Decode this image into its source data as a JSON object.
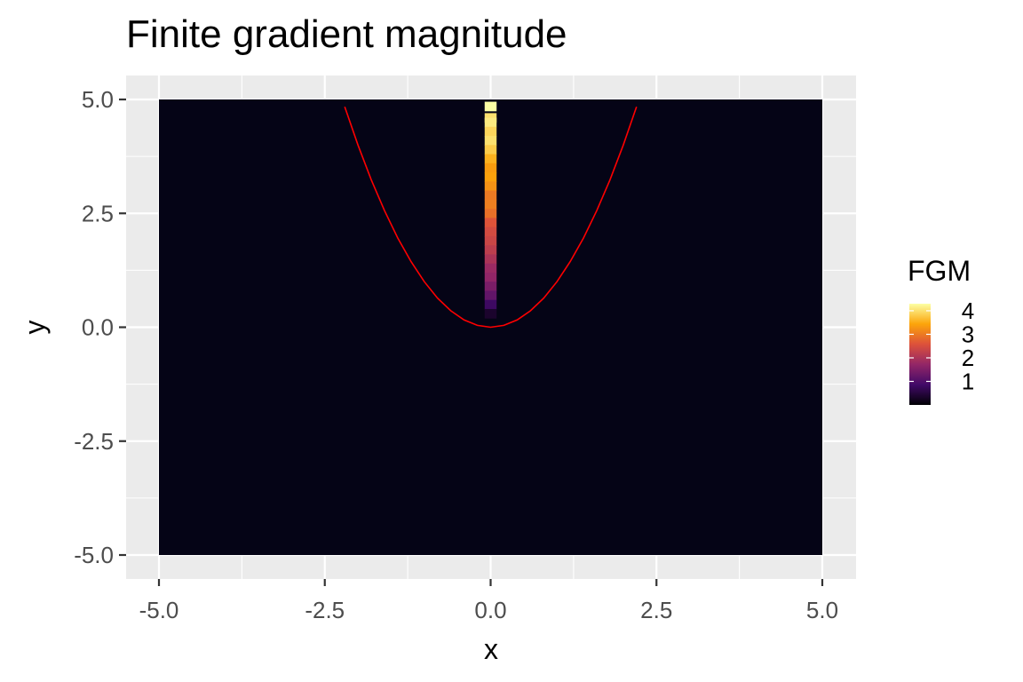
{
  "chart_data": {
    "type": "heatmap",
    "title": "Finite gradient magnitude",
    "xlabel": "x",
    "ylabel": "y",
    "xlim": [
      -5,
      5
    ],
    "ylim": [
      -5,
      5
    ],
    "x_ticks": [
      "-5.0",
      "-2.5",
      "0.0",
      "2.5",
      "5.0"
    ],
    "y_ticks": [
      "5.0",
      "2.5",
      "0.0",
      "-2.5",
      "-5.0"
    ],
    "x_tick_values": [
      -5,
      -2.5,
      0,
      2.5,
      5
    ],
    "y_tick_values": [
      5,
      2.5,
      0,
      -2.5,
      -5
    ],
    "grid": true,
    "background_color": "#050416",
    "panel_color": "#ebebeb",
    "legend": {
      "title": "FGM",
      "labels": [
        "4",
        "3",
        "2",
        "1"
      ],
      "values": [
        4,
        3,
        2,
        1
      ],
      "range": [
        0,
        4.3
      ],
      "placement": "right",
      "colormap": "inferno",
      "colors": [
        "#000004",
        "#420a68",
        "#932667",
        "#dd513a",
        "#fca50a",
        "#fcffa4"
      ]
    },
    "ridge": {
      "x": 0,
      "cells": [
        {
          "y": 4.85,
          "v": 4.3
        },
        {
          "y": 4.6,
          "v": 4.0
        },
        {
          "y": 4.5,
          "v": 4.1
        },
        {
          "y": 4.3,
          "v": 3.9
        },
        {
          "y": 4.1,
          "v": 4.0
        },
        {
          "y": 3.9,
          "v": 3.8
        },
        {
          "y": 3.7,
          "v": 3.55
        },
        {
          "y": 3.5,
          "v": 3.35
        },
        {
          "y": 3.3,
          "v": 3.4
        },
        {
          "y": 3.1,
          "v": 3.25
        },
        {
          "y": 2.9,
          "v": 3.0
        },
        {
          "y": 2.7,
          "v": 3.05
        },
        {
          "y": 2.5,
          "v": 2.9
        },
        {
          "y": 2.3,
          "v": 2.6
        },
        {
          "y": 2.1,
          "v": 2.45
        },
        {
          "y": 1.9,
          "v": 2.35
        },
        {
          "y": 1.7,
          "v": 2.2
        },
        {
          "y": 1.5,
          "v": 2.0
        },
        {
          "y": 1.3,
          "v": 1.8
        },
        {
          "y": 1.1,
          "v": 1.7
        },
        {
          "y": 0.9,
          "v": 1.45
        },
        {
          "y": 0.7,
          "v": 1.2
        },
        {
          "y": 0.5,
          "v": 0.8
        },
        {
          "y": 0.3,
          "v": 0.35
        }
      ]
    },
    "curve": {
      "name": "",
      "color": "#ff0000",
      "x": [
        -2.2,
        -2.0,
        -1.8,
        -1.6,
        -1.4,
        -1.2,
        -1.0,
        -0.8,
        -0.6,
        -0.4,
        -0.2,
        0.0,
        0.2,
        0.4,
        0.6,
        0.8,
        1.0,
        1.2,
        1.4,
        1.6,
        1.8,
        2.0,
        2.2
      ],
      "y": [
        4.84,
        4.0,
        3.24,
        2.56,
        1.96,
        1.44,
        1.0,
        0.64,
        0.36,
        0.16,
        0.04,
        0.0,
        0.04,
        0.16,
        0.36,
        0.64,
        1.0,
        1.44,
        1.96,
        2.56,
        3.24,
        4.0,
        4.84
      ]
    }
  }
}
